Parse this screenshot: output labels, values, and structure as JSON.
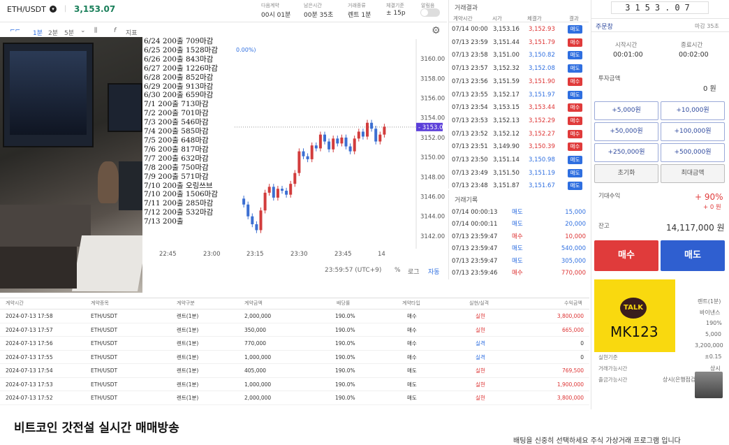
{
  "header": {
    "symbol": "ETH/USDT",
    "price": "3,153.07",
    "labels": [
      "다음계약",
      "남은시간",
      "거래종류",
      "체결기준",
      "알림음"
    ],
    "values": [
      "00시 01분",
      "00분 35초",
      "렌트 1분",
      "± 15p",
      ""
    ]
  },
  "toolbar": {
    "items": [
      "1분",
      "2분",
      "5분",
      "지표"
    ]
  },
  "chart_data": {
    "type": "candlestick",
    "y_ticks": [
      "3160.00",
      "3158.00",
      "3156.00",
      "3154.00",
      "3152.00",
      "3150.00",
      "3148.00",
      "3146.00",
      "3144.00",
      "3142.00"
    ],
    "x_ticks": [
      "22:45",
      "23:00",
      "23:15",
      "23:30",
      "23:45",
      "14"
    ],
    "current_price": "3153.07",
    "pct_label": "0.00%)",
    "ylim": [
      3141,
      3161
    ]
  },
  "chart_footer": {
    "time": "23:59:57 (UTC+9)",
    "pct": "%",
    "log": "로그",
    "auto": "자동"
  },
  "notes": [
    "6/24 200출 709마감",
    "6/25 200출 1528마감",
    "6/26 200출 843마감",
    "6/27 200출 1226마감",
    "6/28 200출 852마감",
    "6/29 200출 913마감",
    "6/30 200출 659마감",
    "7/1  200출 713마감",
    "7/2  200출 701마감",
    "7/3  200출 546마감",
    "7/4  200출 585마감",
    "7/5  200출 648마감",
    "7/6  200출 817마감",
    "7/7  200출 632마감",
    "7/8  200출 750마감",
    "7/9  200출 571마감",
    "7/10 200출 오링쓰브",
    "7/10 200출 1506마감",
    "7/11 200출 285마감",
    "7/12 200출 532마감",
    "7/13 200출"
  ],
  "trades": {
    "title": "거래결과",
    "headers": [
      "계약시간",
      "시가",
      "체결가",
      "결과"
    ],
    "rows": [
      [
        "07/14 00:00",
        "3,153.16",
        "3,152.93",
        "매도",
        "sell",
        "red"
      ],
      [
        "07/13 23:59",
        "3,151.44",
        "3,151.79",
        "매수",
        "buy",
        "red"
      ],
      [
        "07/13 23:58",
        "3,151.00",
        "3,150.82",
        "매도",
        "sell",
        "blue"
      ],
      [
        "07/13 23:57",
        "3,152.32",
        "3,152.08",
        "매도",
        "sell",
        "blue"
      ],
      [
        "07/13 23:56",
        "3,151.59",
        "3,151.90",
        "매수",
        "buy",
        "red"
      ],
      [
        "07/13 23:55",
        "3,152.17",
        "3,151.97",
        "매도",
        "sell",
        "blue"
      ],
      [
        "07/13 23:54",
        "3,153.15",
        "3,153.44",
        "매수",
        "buy",
        "red"
      ],
      [
        "07/13 23:53",
        "3,152.13",
        "3,152.29",
        "매수",
        "buy",
        "red"
      ],
      [
        "07/13 23:52",
        "3,152.12",
        "3,152.27",
        "매수",
        "buy",
        "red"
      ],
      [
        "07/13 23:51",
        "3,149.90",
        "3,150.39",
        "매수",
        "buy",
        "red"
      ],
      [
        "07/13 23:50",
        "3,151.14",
        "3,150.98",
        "매도",
        "sell",
        "blue"
      ],
      [
        "07/13 23:49",
        "3,151.50",
        "3,151.19",
        "매도",
        "sell",
        "blue"
      ],
      [
        "07/13 23:48",
        "3,151.87",
        "3,151.67",
        "매도",
        "sell",
        "blue"
      ]
    ]
  },
  "history": {
    "title": "거래기록",
    "rows": [
      [
        "07/14 00:00:13",
        "매도",
        "15,000",
        "blue"
      ],
      [
        "07/14 00:00:11",
        "매도",
        "20,000",
        "blue"
      ],
      [
        "07/13 23:59:47",
        "매수",
        "10,000",
        "red"
      ],
      [
        "07/13 23:59:47",
        "매도",
        "540,000",
        "blue"
      ],
      [
        "07/13 23:59:47",
        "매도",
        "305,000",
        "blue"
      ],
      [
        "07/13 23:59:46",
        "매수",
        "770,000",
        "red"
      ]
    ]
  },
  "order": {
    "title": "주문창",
    "deadline": "마감 35초",
    "start_label": "시작시간",
    "start": "00:01:00",
    "end_label": "종료시간",
    "end": "00:02:00",
    "amount_label": "투자금액",
    "amount": "0 원",
    "buttons": [
      "+5,000원",
      "+10,000원",
      "+50,000원",
      "+100,000원",
      "+250,000원",
      "+500,000원",
      "초기화",
      "최대금액"
    ],
    "expected_label": "기대수익",
    "expected_pct": "+ 90%",
    "expected_amt": "+ 0 원",
    "balance_label": "잔고",
    "balance": "14,117,000 원",
    "buy": "매수",
    "sell": "매도",
    "ticker": "3153.07"
  },
  "kakao": {
    "talk": "TALK",
    "id": "MK123"
  },
  "info": {
    "right": [
      "렌트(1분)",
      "바이낸스",
      "190%",
      "5,000",
      "3,200,000"
    ],
    "rows": [
      [
        "실현기준",
        "±0.15"
      ],
      [
        "거래가능시간",
        "상시"
      ],
      [
        "출금가능시간",
        "상시(은행점검..."
      ]
    ]
  },
  "table": {
    "headers": [
      "계약시간",
      "계약종목",
      "계약구분",
      "계약금액",
      "배당률",
      "계약타입",
      "실현/실격",
      "수익금액"
    ],
    "rows": [
      [
        "2024-07-13 17:58",
        "ETH/USDT",
        "렌트(1분)",
        "2,000,000",
        "190.0%",
        "매수",
        "실현",
        "3,800,000",
        "red"
      ],
      [
        "2024-07-13 17:57",
        "ETH/USDT",
        "렌트(1분)",
        "350,000",
        "190.0%",
        "매수",
        "실현",
        "665,000",
        "red"
      ],
      [
        "2024-07-13 17:56",
        "ETH/USDT",
        "렌트(1분)",
        "770,000",
        "190.0%",
        "매수",
        "실격",
        "0",
        "blue"
      ],
      [
        "2024-07-13 17:55",
        "ETH/USDT",
        "렌트(1분)",
        "1,000,000",
        "190.0%",
        "매수",
        "실격",
        "0",
        "blue"
      ],
      [
        "2024-07-13 17:54",
        "ETH/USDT",
        "렌트(1분)",
        "405,000",
        "190.0%",
        "매도",
        "실현",
        "769,500",
        "red"
      ],
      [
        "2024-07-13 17:53",
        "ETH/USDT",
        "렌트(1분)",
        "1,000,000",
        "190.0%",
        "매도",
        "실현",
        "1,900,000",
        "red"
      ],
      [
        "2024-07-13 17:52",
        "ETH/USDT",
        "렌트(1분)",
        "2,000,000",
        "190.0%",
        "매도",
        "실현",
        "3,800,000",
        "red"
      ]
    ]
  },
  "caption": "비트코인 갓전설 실시간 매매방송",
  "subcaption": "배팅을 신중히 선택하세요 주식 가상거래 프로그램 입니다"
}
